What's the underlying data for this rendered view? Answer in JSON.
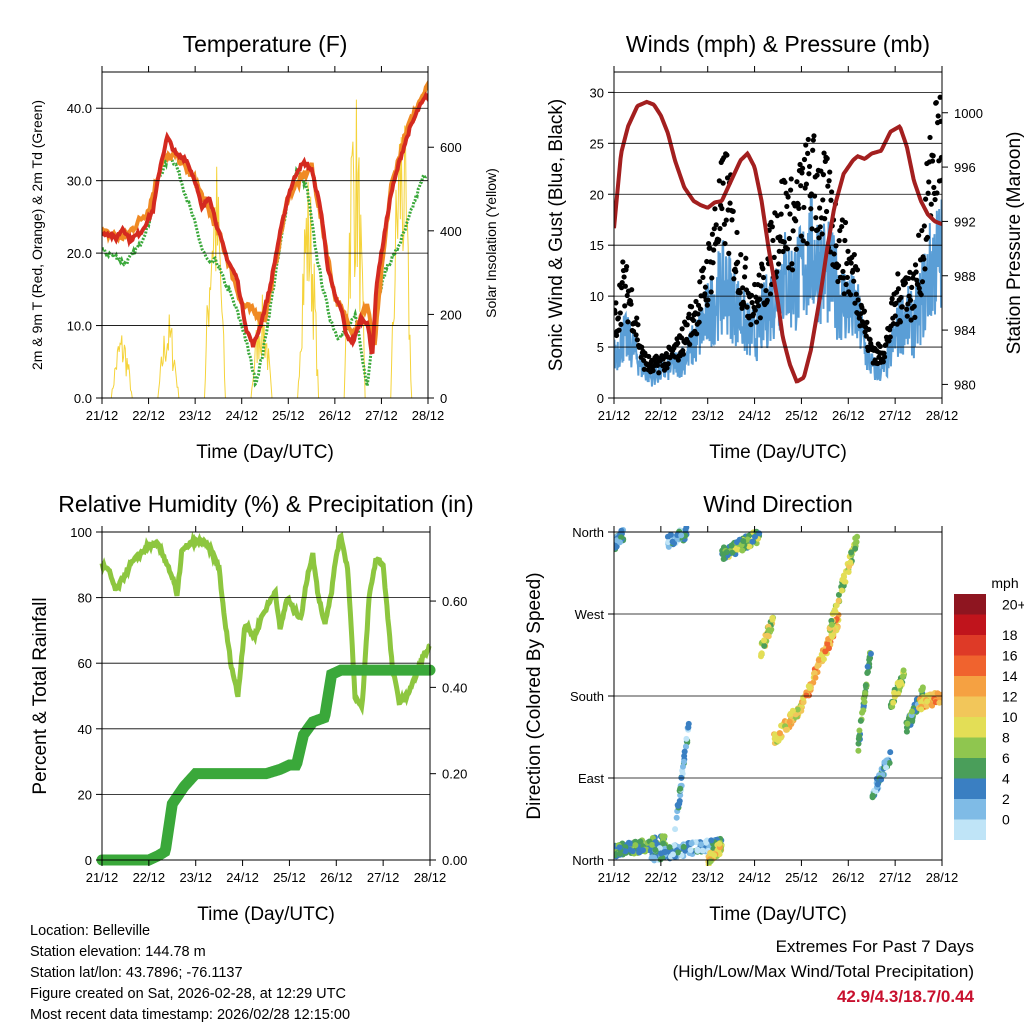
{
  "chart_data": [
    {
      "id": "temperature",
      "type": "line",
      "title": "Temperature (F)",
      "xlabel": "Time (Day/UTC)",
      "ylabel_left": "2m & 9m T (Red, Orange) & 2m Td (Green)",
      "ylabel_right": "Solar Insolation (Yellow)",
      "x_tick_labels": [
        "21/12",
        "22/12",
        "23/12",
        "24/12",
        "25/12",
        "26/12",
        "27/12",
        "28/12"
      ],
      "xlim": [
        0,
        7
      ],
      "ylim_left": [
        0,
        45
      ],
      "y_ticks_left": [
        "0.0",
        "10.0",
        "20.0",
        "30.0",
        "40.0"
      ],
      "ylim_right": [
        0,
        780
      ],
      "y_ticks_right": [
        "0",
        "200",
        "400",
        "600"
      ],
      "series": [
        {
          "name": "2m T",
          "color": "#d42a20",
          "x": [
            0,
            0.1,
            0.3,
            0.45,
            0.6,
            0.85,
            1.1,
            1.25,
            1.4,
            1.6,
            1.8,
            2.0,
            2.15,
            2.3,
            2.5,
            2.7,
            2.9,
            3.0,
            3.1,
            3.25,
            3.4,
            3.6,
            3.8,
            4.0,
            4.2,
            4.35,
            4.5,
            4.7,
            4.85,
            5.0,
            5.15,
            5.25,
            5.4,
            5.55,
            5.7,
            5.8,
            5.9,
            6.05,
            6.2,
            6.4,
            6.6,
            6.8,
            7.0
          ],
          "values": [
            22.5,
            22.8,
            22,
            23.5,
            21.8,
            23,
            26,
            32,
            36,
            33.5,
            33,
            30,
            26,
            28,
            23,
            19,
            16.5,
            13,
            9.5,
            7.2,
            10,
            15,
            22,
            28,
            31.5,
            32.5,
            31.5,
            26,
            18,
            14,
            12,
            8.5,
            7.8,
            10.8,
            10.5,
            5.6,
            16,
            22,
            28,
            33,
            37,
            40,
            42
          ]
        },
        {
          "name": "9m T",
          "color": "#f08a24",
          "x": [
            0,
            0.5,
            1.0,
            1.3,
            1.6,
            2.0,
            2.5,
            3.0,
            3.5,
            4.0,
            4.5,
            5.0,
            5.4,
            5.7,
            5.85,
            6.0,
            6.2,
            6.5,
            6.8,
            7.0
          ],
          "values": [
            22.8,
            22.2,
            26,
            33,
            33.5,
            30,
            23,
            13,
            11,
            28,
            32,
            14,
            9,
            13,
            7,
            17,
            29,
            36,
            41,
            43
          ]
        },
        {
          "name": "2m Td",
          "color": "#3aa83a",
          "x": [
            0,
            0.1,
            0.3,
            0.5,
            0.8,
            1.0,
            1.2,
            1.45,
            1.6,
            1.8,
            2.0,
            2.15,
            2.3,
            2.45,
            2.6,
            2.75,
            2.9,
            3.05,
            3.2,
            3.3,
            3.45,
            3.6,
            3.8,
            4.0,
            4.2,
            4.4,
            4.6,
            4.75,
            4.9,
            5.05,
            5.25,
            5.45,
            5.6,
            5.7,
            5.8,
            5.95,
            6.1,
            6.3,
            6.5,
            6.7,
            6.9,
            7.0
          ],
          "values": [
            20.5,
            20,
            19.5,
            18.5,
            21,
            24,
            30,
            33.5,
            32,
            28,
            24,
            20.5,
            18.5,
            19,
            16.5,
            14.5,
            12,
            9,
            5,
            2,
            6,
            12,
            20,
            28,
            31.5,
            29,
            20,
            15,
            11,
            8.5,
            9,
            11.5,
            5,
            1.8,
            8,
            14,
            18,
            20,
            23,
            27,
            30.5,
            31
          ]
        },
        {
          "name": "Solar Insolation",
          "color": "#f5d33a",
          "axis": "right",
          "days": [
            0,
            1,
            2,
            3,
            4,
            5,
            6
          ],
          "peaks": [
            170,
            210,
            610,
            250,
            560,
            780,
            760
          ]
        }
      ]
    },
    {
      "id": "winds",
      "type": "scatter",
      "title": "Winds (mph) & Pressure (mb)",
      "xlabel": "Time (Day/UTC)",
      "ylabel_left": "Sonic Wind & Gust (Blue, Black)",
      "ylabel_right": "Station Pressure (Maroon)",
      "x_tick_labels": [
        "21/12",
        "22/12",
        "23/12",
        "24/12",
        "25/12",
        "26/12",
        "27/12",
        "28/12"
      ],
      "xlim": [
        0,
        7
      ],
      "ylim_left": [
        0,
        32
      ],
      "y_ticks_left": [
        "0",
        "5",
        "10",
        "15",
        "20",
        "25",
        "30"
      ],
      "ylim_right": [
        979,
        1003
      ],
      "y_ticks_right": [
        "980",
        "984",
        "988",
        "992",
        "996",
        "1000"
      ],
      "series": [
        {
          "name": "Sonic Wind",
          "color": "#5a9ed6",
          "x": [
            0,
            0.2,
            0.4,
            0.6,
            0.8,
            1.0,
            1.2,
            1.4,
            1.6,
            1.8,
            2.0,
            2.2,
            2.4,
            2.6,
            2.8,
            3.0,
            3.2,
            3.4,
            3.6,
            3.8,
            4.0,
            4.2,
            4.4,
            4.6,
            4.8,
            5.0,
            5.2,
            5.4,
            5.6,
            5.8,
            6.0,
            6.2,
            6.4,
            6.6,
            6.8,
            7.0
          ],
          "values": [
            4,
            6,
            5,
            3,
            2,
            2.5,
            3,
            3.5,
            4.5,
            6,
            8,
            10,
            11,
            9,
            7,
            6,
            8,
            10,
            12,
            11,
            12,
            14,
            13,
            12,
            10,
            9,
            8,
            4,
            2.5,
            3,
            6,
            8,
            7,
            10,
            13,
            14
          ]
        },
        {
          "name": "Gust",
          "color": "#000000",
          "x": [
            0,
            0.2,
            0.4,
            0.6,
            0.8,
            1.0,
            1.2,
            1.4,
            1.6,
            1.8,
            2.0,
            2.2,
            2.4,
            2.6,
            2.8,
            3.0,
            3.2,
            3.4,
            3.6,
            3.8,
            4.0,
            4.2,
            4.4,
            4.6,
            4.8,
            5.0,
            5.2,
            5.4,
            5.6,
            5.8,
            6.0,
            6.2,
            6.4,
            6.6,
            6.8,
            7.0
          ],
          "values": [
            7,
            11,
            9,
            4,
            3,
            3.5,
            4,
            5,
            7,
            9,
            12,
            17,
            20,
            14,
            11,
            9,
            11,
            15,
            18,
            17,
            19,
            21,
            20,
            18,
            15,
            13,
            11,
            6,
            4,
            5,
            9,
            11,
            10,
            15,
            23,
            26
          ]
        },
        {
          "name": "Station Pressure",
          "color": "#a31f1f",
          "axis": "right",
          "x": [
            0,
            0.15,
            0.3,
            0.5,
            0.7,
            0.85,
            1.0,
            1.15,
            1.3,
            1.5,
            1.7,
            1.85,
            2.0,
            2.15,
            2.3,
            2.5,
            2.7,
            2.85,
            3.0,
            3.15,
            3.3,
            3.5,
            3.6,
            3.75,
            3.9,
            4.05,
            4.2,
            4.4,
            4.55,
            4.7,
            4.9,
            5.0,
            5.1,
            5.2,
            5.35,
            5.5,
            5.7,
            5.9,
            6.1,
            6.25,
            6.4,
            6.55,
            6.7,
            6.85,
            7.0
          ],
          "values": [
            991.5,
            997,
            999,
            1000.5,
            1000.8,
            1000.6,
            999.8,
            998.5,
            996.5,
            994.5,
            993.5,
            993.2,
            993,
            993.4,
            993.5,
            995,
            996.5,
            997,
            996,
            993.5,
            990,
            986,
            983.5,
            981.5,
            980.2,
            980.5,
            982.5,
            986.5,
            990,
            993,
            995.5,
            996,
            996.5,
            996.8,
            996.6,
            997,
            997.2,
            998.6,
            999,
            997.5,
            995,
            993.5,
            992.5,
            992,
            991.8
          ]
        }
      ]
    },
    {
      "id": "humidity",
      "type": "line",
      "title": "Relative Humidity (%) & Precipitation (in)",
      "xlabel": "Time (Day/UTC)",
      "ylabel_left": "Percent & Total Rainfall",
      "x_tick_labels": [
        "21/12",
        "22/12",
        "23/12",
        "24/12",
        "25/12",
        "26/12",
        "27/12",
        "28/12"
      ],
      "xlim": [
        0,
        7
      ],
      "ylim_left": [
        0,
        100
      ],
      "y_ticks_left": [
        "0",
        "20",
        "40",
        "60",
        "80",
        "100"
      ],
      "ylim_right": [
        0,
        0.76
      ],
      "y_ticks_right": [
        "0.00",
        "0.20",
        "0.40",
        "0.60"
      ],
      "series": [
        {
          "name": "Relative Humidity",
          "color": "#8dc63f",
          "x": [
            0,
            0.15,
            0.3,
            0.45,
            0.6,
            0.8,
            1.0,
            1.2,
            1.4,
            1.55,
            1.6,
            1.7,
            1.85,
            2.0,
            2.15,
            2.3,
            2.5,
            2.6,
            2.75,
            2.9,
            3.05,
            3.25,
            3.4,
            3.55,
            3.7,
            3.8,
            3.95,
            4.1,
            4.25,
            4.4,
            4.5,
            4.6,
            4.75,
            4.9,
            5.0,
            5.1,
            5.25,
            5.4,
            5.55,
            5.7,
            5.85,
            6.0,
            6.2,
            6.35,
            6.5,
            6.7,
            6.85,
            7.0
          ],
          "values": [
            90,
            88,
            82,
            86,
            90,
            93,
            96,
            96,
            90,
            84,
            80,
            94,
            96,
            97,
            97,
            95,
            89,
            75,
            60,
            50,
            72,
            68,
            74,
            78,
            82,
            70,
            80,
            76,
            74,
            88,
            93,
            82,
            72,
            82,
            93,
            99,
            88,
            50,
            46,
            80,
            92,
            90,
            58,
            48,
            50,
            56,
            62,
            65
          ]
        },
        {
          "name": "Total Precipitation",
          "color": "#3aa83a",
          "axis": "right",
          "x": [
            0,
            0.5,
            1.0,
            1.2,
            1.35,
            1.5,
            1.75,
            2.0,
            2.5,
            3.0,
            3.5,
            3.8,
            4.0,
            4.15,
            4.3,
            4.5,
            4.75,
            4.9,
            5.1,
            5.5,
            6.0,
            6.5,
            7.0
          ],
          "values": [
            0,
            0,
            0,
            0.01,
            0.02,
            0.13,
            0.17,
            0.2,
            0.2,
            0.2,
            0.2,
            0.21,
            0.22,
            0.22,
            0.29,
            0.32,
            0.33,
            0.43,
            0.44,
            0.44,
            0.44,
            0.44,
            0.44
          ]
        }
      ]
    },
    {
      "id": "wind_direction",
      "type": "scatter",
      "title": "Wind Direction",
      "xlabel": "Time (Day/UTC)",
      "ylabel": "Direction (Colored By Speed)",
      "x_tick_labels": [
        "21/12",
        "22/12",
        "23/12",
        "24/12",
        "25/12",
        "26/12",
        "27/12",
        "28/12"
      ],
      "xlim": [
        0,
        7
      ],
      "ylim": [
        0,
        360
      ],
      "y_ticks": [
        "North",
        "East",
        "South",
        "West",
        "North"
      ],
      "colorbar": {
        "title": "mph",
        "labels": [
          "20+",
          "18",
          "16",
          "14",
          "12",
          "10",
          "8",
          "6",
          "4",
          "2",
          "0"
        ],
        "colors": [
          "#8e1520",
          "#c0141c",
          "#de3a27",
          "#f0632e",
          "#f5a142",
          "#f2c65a",
          "#e3de56",
          "#8fc64f",
          "#4a9e5a",
          "#3a7fc2",
          "#7fbbe6",
          "#bfe4f7"
        ]
      },
      "clusters": [
        {
          "t0": 0.0,
          "t1": 1.1,
          "d0": 10,
          "d1": 20,
          "spd": 6
        },
        {
          "t0": 0.8,
          "t1": 2.3,
          "d0": 5,
          "d1": 18,
          "spd": 3
        },
        {
          "t0": 1.3,
          "t1": 1.6,
          "d0": 30,
          "d1": 150,
          "spd": 3
        },
        {
          "t0": 2.0,
          "t1": 2.3,
          "d0": 0,
          "d1": 15,
          "spd": 11
        },
        {
          "t0": 0.0,
          "t1": 0.2,
          "d0": 345,
          "d1": 358,
          "spd": 4
        },
        {
          "t0": 1.15,
          "t1": 1.55,
          "d0": 350,
          "d1": 359,
          "spd": 3
        },
        {
          "t0": 2.3,
          "t1": 3.1,
          "d0": 335,
          "d1": 356,
          "spd": 7
        },
        {
          "t0": 3.1,
          "t1": 3.4,
          "d0": 225,
          "d1": 265,
          "spd": 9
        },
        {
          "t0": 3.4,
          "t1": 4.1,
          "d0": 130,
          "d1": 175,
          "spd": 11
        },
        {
          "t0": 4.1,
          "t1": 4.8,
          "d0": 180,
          "d1": 265,
          "spd": 13
        },
        {
          "t0": 4.6,
          "t1": 5.2,
          "d0": 255,
          "d1": 355,
          "spd": 9
        },
        {
          "t0": 5.2,
          "t1": 5.5,
          "d0": 120,
          "d1": 240,
          "spd": 6
        },
        {
          "t0": 5.5,
          "t1": 5.9,
          "d0": 70,
          "d1": 115,
          "spd": 3
        },
        {
          "t0": 5.9,
          "t1": 6.2,
          "d0": 170,
          "d1": 205,
          "spd": 8
        },
        {
          "t0": 6.2,
          "t1": 6.6,
          "d0": 140,
          "d1": 185,
          "spd": 5
        },
        {
          "t0": 6.5,
          "t1": 7.0,
          "d0": 170,
          "d1": 180,
          "spd": 13
        }
      ]
    }
  ],
  "info": {
    "location": "Location: Belleville",
    "elevation": "Station elevation: 144.78 m",
    "latlon": "Station lat/lon: 43.7896; -76.1137",
    "created": "Figure created on Sat, 2026-02-28, at 12:29 UTC",
    "recent": "Most recent data timestamp: 2026/02/28 12:15:00"
  },
  "extremes": {
    "title": "Extremes For Past 7 Days",
    "subtitle": "(High/Low/Max Wind/Total Precipitation)",
    "values": "42.9/4.3/18.7/0.44"
  }
}
